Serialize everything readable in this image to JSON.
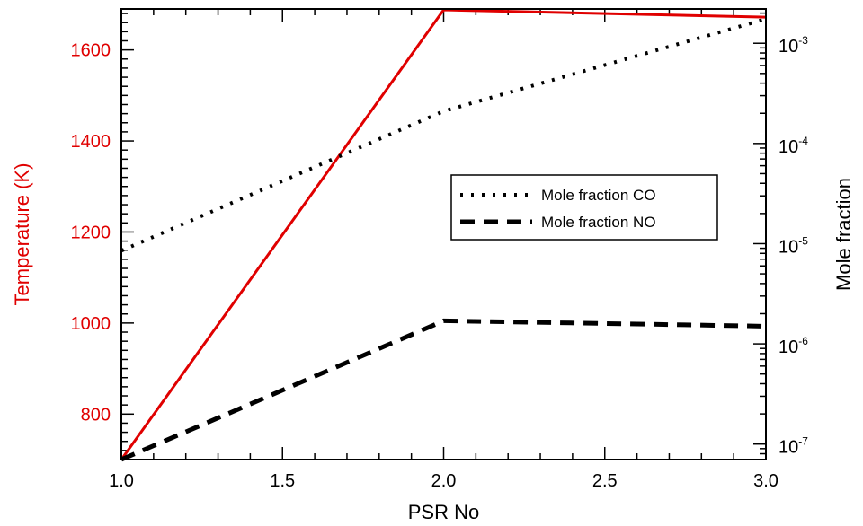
{
  "chart_data": {
    "type": "line",
    "xlabel": "PSR No",
    "ylabel_left": "Temperature (K)",
    "ylabel_right": "Mole fraction",
    "xlim": [
      1.0,
      3.0
    ],
    "ylim_left": [
      700,
      1690
    ],
    "ylim_right": [
      7e-08,
      0.0022
    ],
    "yscale_right": "log",
    "xticks": [
      "1.0",
      "1.5",
      "2.0",
      "2.5",
      "3.0"
    ],
    "yticks_left": [
      "800",
      "1000",
      "1200",
      "1400",
      "1600"
    ],
    "yticks_right": [
      {
        "mant": "10",
        "exp": "-7"
      },
      {
        "mant": "10",
        "exp": "-6"
      },
      {
        "mant": "10",
        "exp": "-5"
      },
      {
        "mant": "10",
        "exp": "-4"
      },
      {
        "mant": "10",
        "exp": "-3"
      }
    ],
    "series": [
      {
        "axis": "left",
        "color": "#e00000",
        "style": "solid",
        "x": [
          1.0,
          2.0,
          3.0
        ],
        "values": [
          700,
          1688,
          1672
        ]
      },
      {
        "name": "Mole fraction CO",
        "axis": "right",
        "color": "#000000",
        "style": "dotted",
        "x": [
          1.0,
          2.0,
          3.0
        ],
        "values": [
          8.5e-06,
          0.00021,
          0.00175
        ]
      },
      {
        "name": "Mole fraction NO",
        "axis": "right",
        "color": "#000000",
        "style": "dashed",
        "x": [
          1.0,
          2.0,
          3.0
        ],
        "values": [
          7e-08,
          1.7e-06,
          1.5e-06
        ]
      }
    ],
    "legend": {
      "position": "center-right",
      "entries": [
        "Mole fraction CO",
        "Mole fraction NO"
      ]
    },
    "colors": {
      "temperature_axis": "#e00000",
      "mole_fraction_axis": "#000000"
    },
    "grid": false
  }
}
